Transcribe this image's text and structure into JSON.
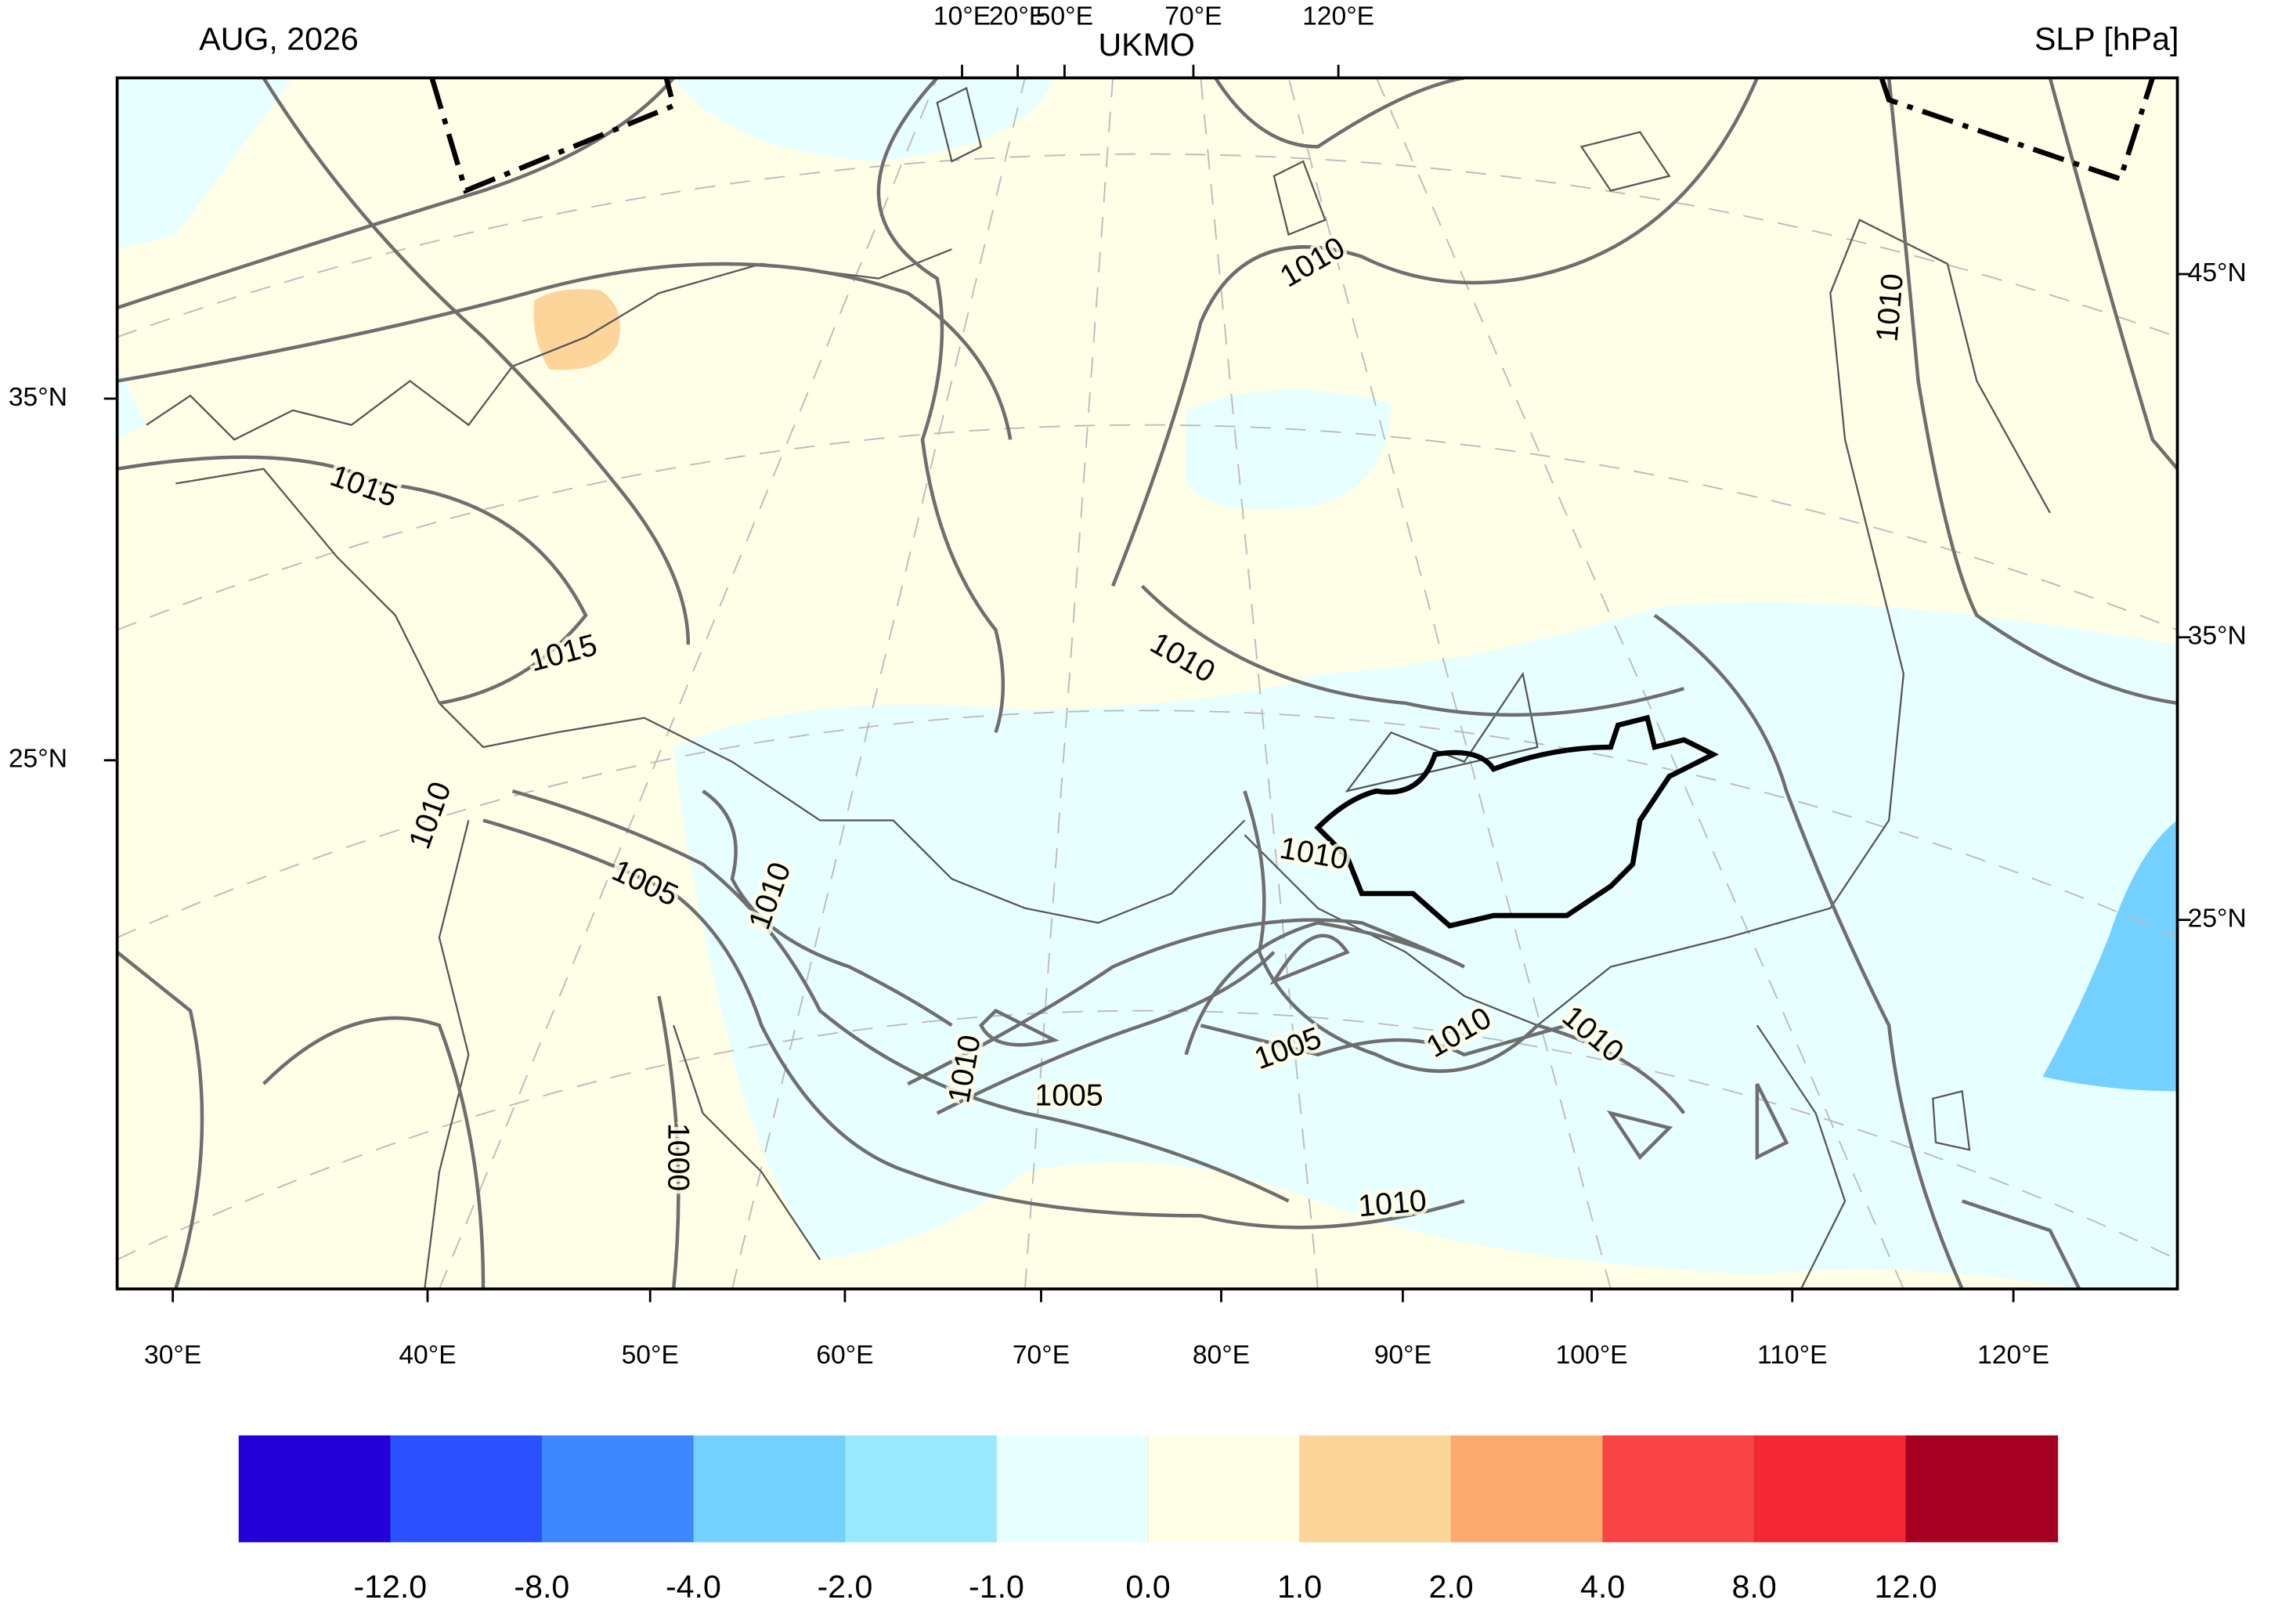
{
  "header": {
    "left": "AUG, 2026",
    "center": "UKMO",
    "right": "SLP [hPa]"
  },
  "top_axis": [
    "10°E",
    "20°E",
    "50°E",
    "70°E",
    "120°E"
  ],
  "left_axis": [
    "35°N",
    "25°N"
  ],
  "right_axis": [
    "45°N",
    "35°N",
    "25°N"
  ],
  "bottom_axis": [
    "30°E",
    "40°E",
    "50°E",
    "60°E",
    "70°E",
    "80°E",
    "90°E",
    "100°E",
    "110°E",
    "120°E"
  ],
  "contour_labels": [
    "1015",
    "1015",
    "1010",
    "1010",
    "1010",
    "1010",
    "1005",
    "1010",
    "1010",
    "1010",
    "1005",
    "1005",
    "1010",
    "1010",
    "1010",
    "1000"
  ],
  "colorbar": {
    "colors": [
      "#2400d8",
      "#2b50ff",
      "#3d87ff",
      "#74d0ff",
      "#99eaff",
      "#e8ffff",
      "#fffee6",
      "#fdd49a",
      "#fdaa6f",
      "#f84444",
      "#f42734",
      "#a50021"
    ],
    "ticks": [
      {
        "value": -12,
        "label": "-12.0"
      },
      {
        "value": -8,
        "label": "-8.0"
      },
      {
        "value": -4,
        "label": "-4.0"
      },
      {
        "value": -2,
        "label": "-2.0"
      },
      {
        "value": -1,
        "label": "-1.0"
      },
      {
        "value": 0,
        "label": "0.0"
      },
      {
        "value": 1,
        "label": "1.0"
      },
      {
        "value": 2,
        "label": "2.0"
      },
      {
        "value": 4,
        "label": "4.0"
      },
      {
        "value": 8,
        "label": "8.0"
      },
      {
        "value": 12,
        "label": "12.0"
      }
    ]
  }
}
